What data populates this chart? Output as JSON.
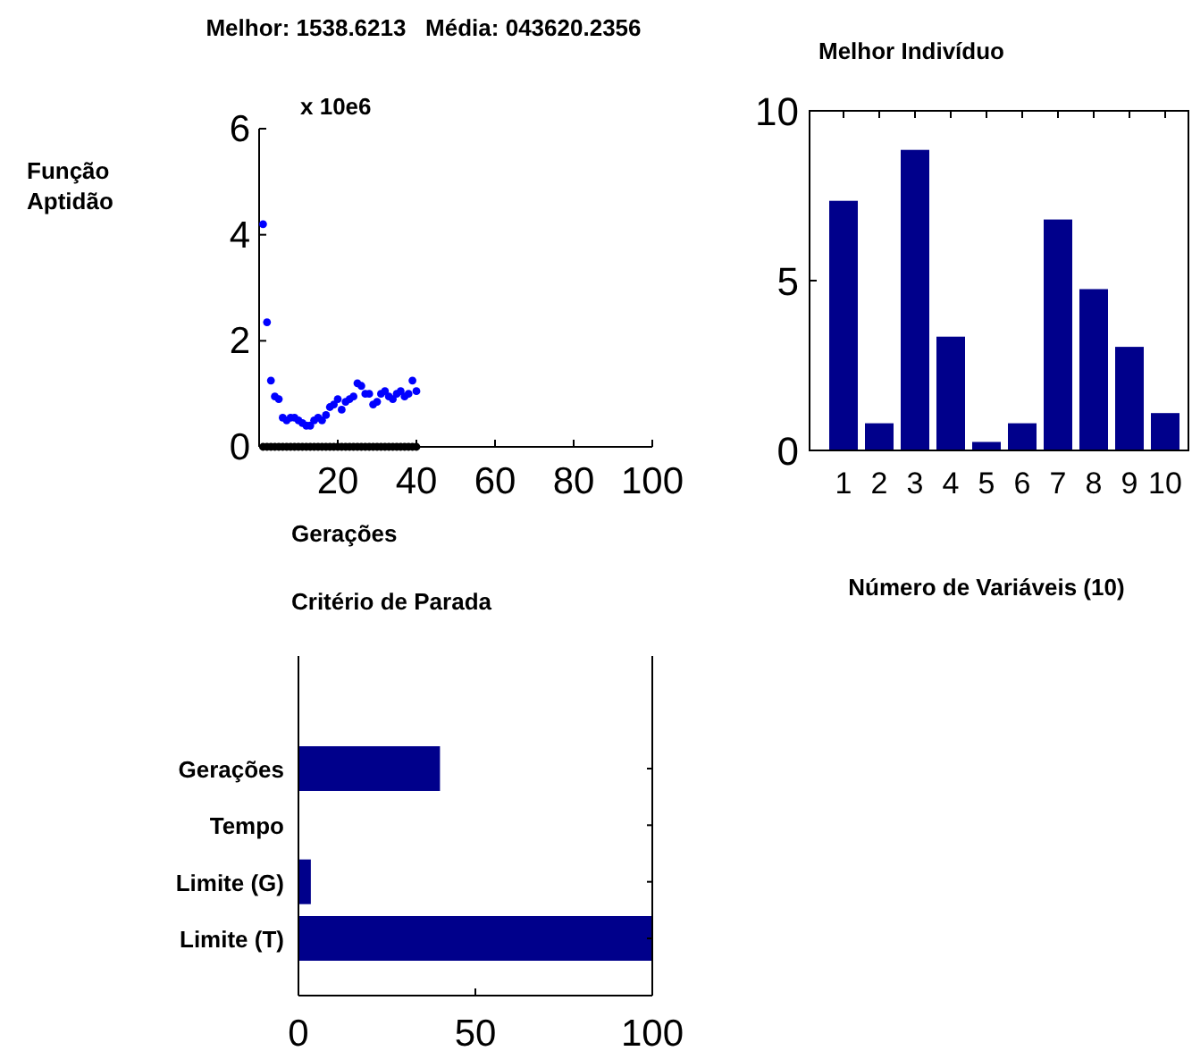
{
  "chart_data": [
    {
      "type": "scatter",
      "title": "Melhor: 1538.6213   Média: 043620.2356",
      "xlabel": "Gerações",
      "ylabel": "Função Aptidão",
      "annotations": [
        "x 10e6"
      ],
      "marker": "circle",
      "xlim": [
        0,
        100
      ],
      "ylim": [
        0,
        6
      ],
      "xticks": [
        20,
        40,
        60,
        80,
        100
      ],
      "yticks": [
        0,
        2,
        4,
        6
      ],
      "x": [
        1,
        2,
        3,
        4,
        5,
        6,
        7,
        8,
        9,
        10,
        11,
        12,
        13,
        14,
        15,
        16,
        17,
        18,
        19,
        20,
        21,
        22,
        23,
        24,
        25,
        26,
        27,
        28,
        29,
        30,
        31,
        32,
        33,
        34,
        35,
        36,
        37,
        38,
        39,
        40
      ],
      "series": [
        {
          "color": "#000000",
          "values": [
            0,
            0,
            0,
            0,
            0,
            0,
            0,
            0,
            0,
            0,
            0,
            0,
            0,
            0,
            0,
            0,
            0,
            0,
            0,
            0,
            0,
            0,
            0,
            0,
            0,
            0,
            0,
            0,
            0,
            0,
            0,
            0,
            0,
            0,
            0,
            0,
            0,
            0,
            0,
            0
          ]
        },
        {
          "color": "#0000ff",
          "values": [
            4.2,
            2.35,
            1.25,
            0.95,
            0.9,
            0.55,
            0.5,
            0.55,
            0.55,
            0.5,
            0.45,
            0.4,
            0.4,
            0.5,
            0.55,
            0.5,
            0.6,
            0.75,
            0.8,
            0.9,
            0.7,
            0.85,
            0.9,
            0.95,
            1.2,
            1.15,
            1.0,
            1.0,
            0.8,
            0.85,
            1.0,
            1.05,
            0.95,
            0.9,
            1.0,
            1.05,
            0.95,
            1.0,
            1.25,
            1.05
          ]
        }
      ]
    },
    {
      "type": "bar",
      "title": "Melhor Indivíduo",
      "xlabel": "Número de Variáveis (10)",
      "categories": [
        "1",
        "2",
        "3",
        "4",
        "5",
        "6",
        "7",
        "8",
        "9",
        "10"
      ],
      "values": [
        7.35,
        0.8,
        8.85,
        3.35,
        0.25,
        0.8,
        6.8,
        4.75,
        3.05,
        1.1
      ],
      "color": "#00008b",
      "ylim": [
        0,
        10
      ],
      "yticks": [
        0,
        5,
        10
      ]
    },
    {
      "type": "bar",
      "orientation": "horizontal",
      "title": "Critério de Parada",
      "categories": [
        "Gerações",
        "Tempo",
        "Limite (G)",
        "Limite (T)"
      ],
      "values": [
        40,
        0,
        3.5,
        100
      ],
      "color": "#00008b",
      "xlim": [
        0,
        100
      ],
      "xticks": [
        0,
        50,
        100
      ]
    }
  ]
}
